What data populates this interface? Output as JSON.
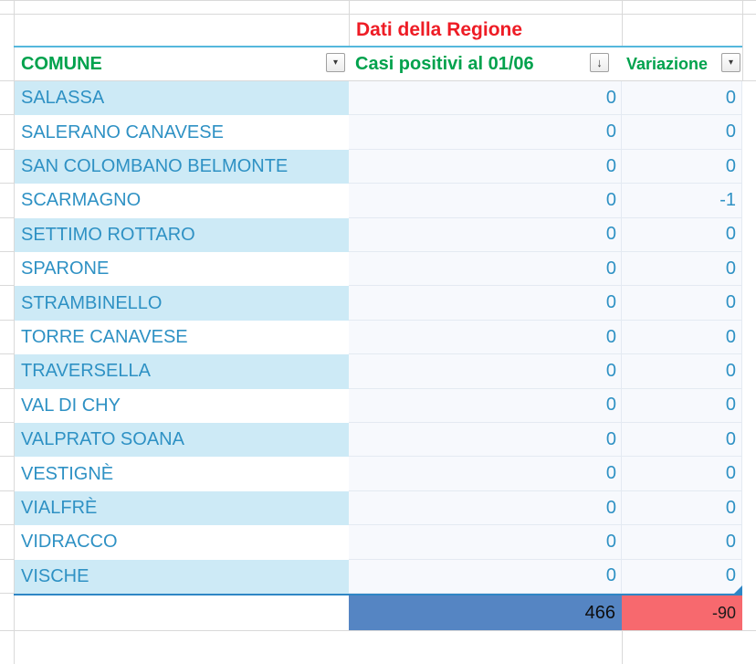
{
  "sheet": {
    "title": "Dati della Regione",
    "columns": [
      {
        "key": "comune",
        "label": "COMUNE",
        "filter_icon": "filter-dropdown-icon"
      },
      {
        "key": "casi",
        "label": "Casi positivi al 01/06",
        "filter_icon": "sort-descending-icon"
      },
      {
        "key": "variazione",
        "label": "Variazione",
        "filter_icon": "filter-dropdown-icon"
      }
    ],
    "filter_glyphs": {
      "comune": "▾",
      "casi": "↓",
      "variazione": "▾"
    },
    "rows": [
      {
        "comune": "SALASSA",
        "casi": "0",
        "variazione": "0"
      },
      {
        "comune": "SALERANO CANAVESE",
        "casi": "0",
        "variazione": "0"
      },
      {
        "comune": "SAN COLOMBANO BELMONTE",
        "casi": "0",
        "variazione": "0"
      },
      {
        "comune": "SCARMAGNO",
        "casi": "0",
        "variazione": "-1"
      },
      {
        "comune": "SETTIMO ROTTARO",
        "casi": "0",
        "variazione": "0"
      },
      {
        "comune": "SPARONE",
        "casi": "0",
        "variazione": "0"
      },
      {
        "comune": "STRAMBINELLO",
        "casi": "0",
        "variazione": "0"
      },
      {
        "comune": "TORRE CANAVESE",
        "casi": "0",
        "variazione": "0"
      },
      {
        "comune": "TRAVERSELLA",
        "casi": "0",
        "variazione": "0"
      },
      {
        "comune": "VAL DI CHY",
        "casi": "0",
        "variazione": "0"
      },
      {
        "comune": "VALPRATO SOANA",
        "casi": "0",
        "variazione": "0"
      },
      {
        "comune": "VESTIGNÈ",
        "casi": "0",
        "variazione": "0"
      },
      {
        "comune": "VIALFRÈ",
        "casi": "0",
        "variazione": "0"
      },
      {
        "comune": "VIDRACCO",
        "casi": "0",
        "variazione": "0"
      },
      {
        "comune": "VISCHE",
        "casi": "0",
        "variazione": "0"
      }
    ],
    "totals": {
      "casi": "466",
      "variazione": "-90"
    },
    "colors": {
      "title_red": "#ee1c25",
      "header_green": "#00a24d",
      "cell_text_blue": "#2e91c4",
      "row_alt_blue": "#cdeaf6",
      "value_bg": "#f7f9fd",
      "total_casi_bg": "#5585c3",
      "total_variazione_bg": "#f7696e",
      "table_line_blue": "#2e86c5",
      "header_line_teal": "#55b7dc"
    }
  }
}
